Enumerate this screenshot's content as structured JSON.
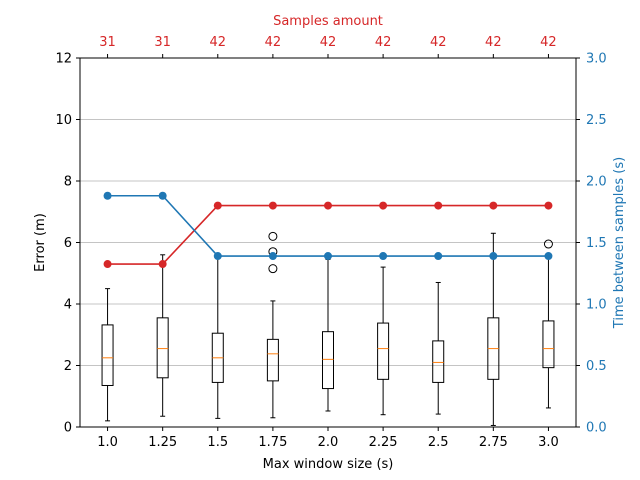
{
  "chart_data": {
    "type": "box+line",
    "xlabel": "Max window size (s)",
    "categories": [
      "1.0",
      "1.25",
      "1.5",
      "1.75",
      "2.0",
      "2.25",
      "2.5",
      "2.75",
      "3.0"
    ],
    "x": [
      1.0,
      1.25,
      1.5,
      1.75,
      2.0,
      2.25,
      2.5,
      2.75,
      3.0
    ],
    "xlim": [
      0.875,
      3.125
    ],
    "left_axis": {
      "label": "Error (m)",
      "ylim": [
        0,
        12
      ],
      "ticks": [
        0,
        2,
        4,
        6,
        8,
        10,
        12
      ],
      "grid": true
    },
    "right_axis": {
      "label": "Time between samples (s)",
      "ylim": [
        0.0,
        3.0
      ],
      "ticks": [
        0.0,
        0.5,
        1.0,
        1.5,
        2.0,
        2.5,
        3.0
      ],
      "color": "#1f77b4"
    },
    "top_axis": {
      "label": "Samples amount",
      "tick_labels": [
        "31",
        "31",
        "42",
        "42",
        "42",
        "42",
        "42",
        "42",
        "42"
      ],
      "color": "#d62728"
    },
    "boxplots": [
      {
        "x": 1.0,
        "whislo": 0.2,
        "q1": 1.35,
        "med": 2.25,
        "q3": 3.32,
        "whishi": 4.5,
        "fliers": []
      },
      {
        "x": 1.25,
        "whislo": 0.35,
        "q1": 1.6,
        "med": 2.55,
        "q3": 3.55,
        "whishi": 5.6,
        "fliers": []
      },
      {
        "x": 1.5,
        "whislo": 0.28,
        "q1": 1.45,
        "med": 2.25,
        "q3": 3.05,
        "whishi": 5.55,
        "fliers": []
      },
      {
        "x": 1.75,
        "whislo": 0.3,
        "q1": 1.5,
        "med": 2.38,
        "q3": 2.85,
        "whishi": 4.1,
        "fliers": [
          5.15,
          5.7,
          6.2
        ]
      },
      {
        "x": 2.0,
        "whislo": 0.52,
        "q1": 1.25,
        "med": 2.2,
        "q3": 3.1,
        "whishi": 5.45,
        "fliers": []
      },
      {
        "x": 2.25,
        "whislo": 0.4,
        "q1": 1.55,
        "med": 2.55,
        "q3": 3.38,
        "whishi": 5.2,
        "fliers": []
      },
      {
        "x": 2.5,
        "whislo": 0.42,
        "q1": 1.45,
        "med": 2.1,
        "q3": 2.8,
        "whishi": 4.7,
        "fliers": []
      },
      {
        "x": 2.75,
        "whislo": 0.05,
        "q1": 1.55,
        "med": 2.55,
        "q3": 3.55,
        "whishi": 6.3,
        "fliers": []
      },
      {
        "x": 3.0,
        "whislo": 0.62,
        "q1": 1.93,
        "med": 2.55,
        "q3": 3.45,
        "whishi": 5.55,
        "fliers": [
          5.95
        ]
      }
    ],
    "series": [
      {
        "axis": "left",
        "color": "#d62728",
        "values": [
          5.3,
          5.3,
          7.2,
          7.2,
          7.2,
          7.2,
          7.2,
          7.2,
          7.2
        ]
      },
      {
        "axis": "right",
        "color": "#1f77b4",
        "values": [
          1.88,
          1.88,
          1.39,
          1.39,
          1.39,
          1.39,
          1.39,
          1.39,
          1.39
        ]
      }
    ],
    "colors": {
      "median": "#ff7f0e",
      "box": "#000000",
      "grid": "#b0b0b0"
    }
  }
}
